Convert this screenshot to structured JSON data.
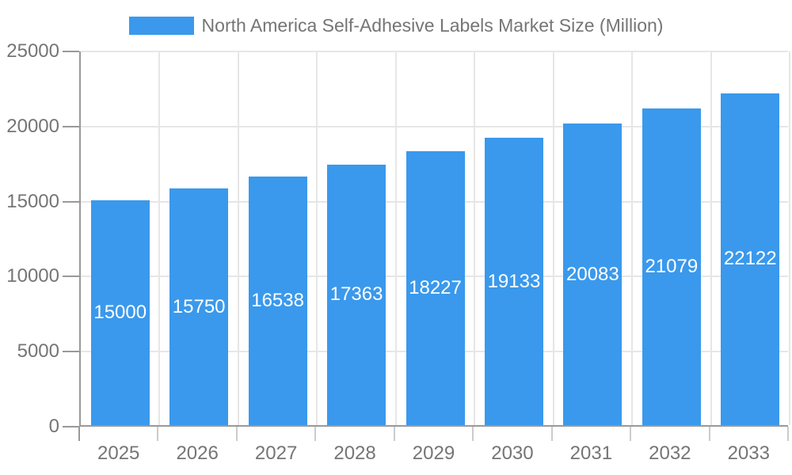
{
  "chart_data": {
    "type": "bar",
    "title": "North America Self-Adhesive Labels Market Size (Million)",
    "categories": [
      "2025",
      "2026",
      "2027",
      "2028",
      "2029",
      "2030",
      "2031",
      "2032",
      "2033"
    ],
    "series": [
      {
        "name": "North America Self-Adhesive Labels Market Size (Million)",
        "values": [
          15000,
          15750,
          16538,
          17363,
          18227,
          19133,
          20083,
          21079,
          22122
        ]
      }
    ],
    "bar_value_labels": [
      "15000",
      "15750",
      "16538",
      "17363",
      "18227",
      "19133",
      "20083",
      "21079",
      "22122"
    ],
    "xlabel": "",
    "ylabel": "",
    "ylim": [
      0,
      25000
    ],
    "y_ticks": [
      0,
      5000,
      10000,
      15000,
      20000,
      25000
    ],
    "y_tick_labels": [
      "0",
      "5000",
      "10000",
      "15000",
      "20000",
      "25000"
    ],
    "grid": "on",
    "legend_position": "top-center",
    "colors": {
      "bar": "#3A99EC",
      "grid": "#E6E6E6",
      "axis": "#999999",
      "minor_tick": "#CCCCCC",
      "text": "#757575",
      "bar_label_text": "#FFFFFF",
      "background": "#FFFFFF"
    }
  }
}
